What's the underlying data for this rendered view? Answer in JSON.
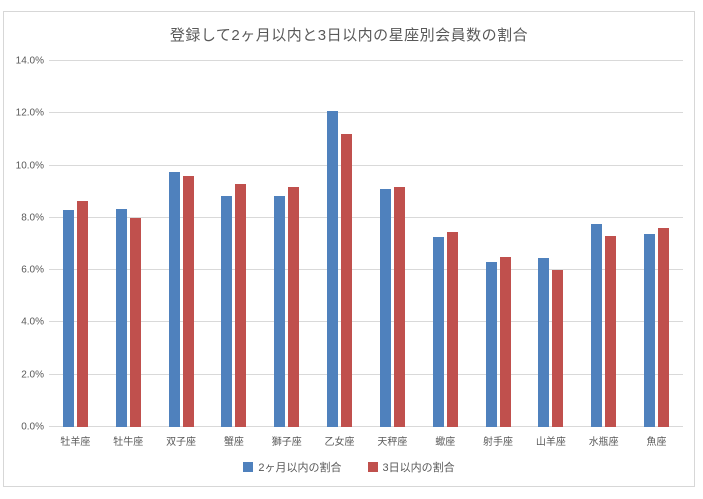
{
  "chart_data": {
    "type": "bar",
    "title": "登録して2ヶ月以内と3日以内の星座別会員数の割合",
    "categories": [
      "牡羊座",
      "牡牛座",
      "双子座",
      "蟹座",
      "獅子座",
      "乙女座",
      "天秤座",
      "蠍座",
      "射手座",
      "山羊座",
      "水瓶座",
      "魚座"
    ],
    "series": [
      {
        "name": "2ヶ月以内の割合",
        "color": "#4f81bd",
        "values": [
          8.3,
          8.35,
          9.75,
          8.85,
          8.85,
          12.1,
          9.1,
          7.25,
          6.3,
          6.45,
          7.75,
          7.4
        ]
      },
      {
        "name": "3日以内の割合",
        "color": "#c0504d",
        "values": [
          8.65,
          8.0,
          9.6,
          9.3,
          9.2,
          11.2,
          9.2,
          7.45,
          6.5,
          6.0,
          7.3,
          7.6
        ]
      }
    ],
    "xlabel": "",
    "ylabel": "",
    "ylim": [
      0,
      14
    ],
    "ytick_step": 2,
    "y_tick_labels": [
      "0.0%",
      "2.0%",
      "4.0%",
      "6.0%",
      "8.0%",
      "10.0%",
      "12.0%",
      "14.0%"
    ],
    "grid": true,
    "legend_position": "bottom"
  },
  "colors": {
    "grid": "#d9d9d9",
    "axis_text": "#595959",
    "frame_border": "#d7d7d7",
    "series_blue": "#4f81bd",
    "series_red": "#c0504d"
  }
}
